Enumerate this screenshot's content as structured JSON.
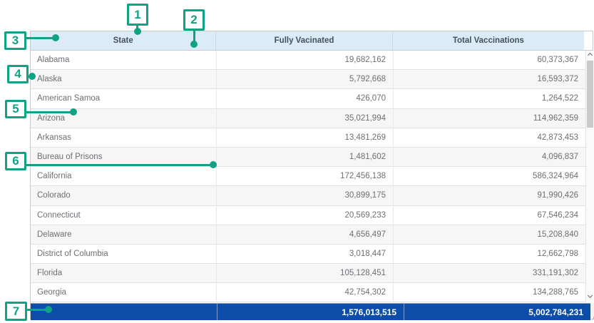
{
  "table": {
    "header": {
      "columns": [
        "State",
        "Fully Vacinated",
        "Total Vaccinations"
      ]
    },
    "rows": [
      {
        "state": "Alabama",
        "fully": "19,682,162",
        "total": "60,373,367"
      },
      {
        "state": "Alaska",
        "fully": "5,792,668",
        "total": "16,593,372"
      },
      {
        "state": "American Samoa",
        "fully": "426,070",
        "total": "1,264,522"
      },
      {
        "state": "Arizona",
        "fully": "35,021,994",
        "total": "114,962,359"
      },
      {
        "state": "Arkansas",
        "fully": "13,481,269",
        "total": "42,873,453"
      },
      {
        "state": "Bureau of Prisons",
        "fully": "1,481,602",
        "total": "4,096,837"
      },
      {
        "state": "California",
        "fully": "172,456,138",
        "total": "586,324,964"
      },
      {
        "state": "Colorado",
        "fully": "30,899,175",
        "total": "91,990,426"
      },
      {
        "state": "Connecticut",
        "fully": "20,569,233",
        "total": "67,546,234"
      },
      {
        "state": "Delaware",
        "fully": "4,656,497",
        "total": "15,208,840"
      },
      {
        "state": "District of Columbia",
        "fully": "3,018,447",
        "total": "12,662,798"
      },
      {
        "state": "Florida",
        "fully": "105,128,451",
        "total": "331,191,302"
      },
      {
        "state": "Georgia",
        "fully": "42,754,302",
        "total": "134,288,765"
      }
    ],
    "footer": {
      "state": "",
      "fully_total": "1,576,013,515",
      "vaccinations_total": "5,002,784,231"
    }
  },
  "annotations": {
    "labels": [
      "1",
      "2",
      "3",
      "4",
      "5",
      "6",
      "7"
    ]
  },
  "colors": {
    "annotation_accent": "#0fa284",
    "header_bg": "#dcebf8",
    "header_text": "#44505a",
    "row_text": "#6b6f73",
    "alt_row_bg": "#f6f6f6",
    "row_border": "#e0e0e0",
    "footer_bg": "#0b4da9",
    "footer_text": "#ffffff",
    "scrollbar_thumb": "#c9c9c9"
  }
}
